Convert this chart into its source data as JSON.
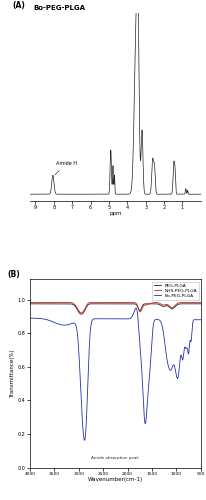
{
  "panel_A_title": "Bo-PEG-PLGA",
  "panel_A_label": "(A)",
  "panel_B_label": "(B)",
  "nmr_xlabel": "ppm",
  "ftir_xlabel": "Wavenumber(cm-1)",
  "ftir_ylabel": "Transmittance(%)",
  "ftir_ylim": [
    0.0,
    1.12
  ],
  "ftir_yticks": [
    0.0,
    0.2,
    0.4,
    0.6,
    0.8,
    1.0
  ],
  "ftir_ytick_labels": [
    "0.0",
    "0.2",
    "0.4",
    "0.6",
    "0.8",
    "1.0"
  ],
  "ftir_xticks": [
    4000,
    3500,
    3000,
    2500,
    2000,
    1500,
    1000,
    500
  ],
  "ftir_xtick_labels": [
    "4000",
    "3500",
    "3000",
    "2500",
    "2000",
    "1500",
    "1000",
    "500"
  ],
  "nmr_xticks": [
    9,
    8,
    7,
    6,
    5,
    4,
    3,
    2,
    1
  ],
  "nmr_xtick_labels": [
    "9",
    "8",
    "7",
    "6",
    "5",
    "4",
    "3",
    "2",
    "1"
  ],
  "legend_entries": [
    "PEG-PLGA",
    "NHS-PEG-PLGA",
    "Bo-PEG-PLGA"
  ],
  "legend_colors": [
    "#222222",
    "#cc2222",
    "#2233aa"
  ],
  "amide_h_label": "Amide H",
  "amide_absorption_label": "Amide absorption peak",
  "background_color": "#ffffff"
}
